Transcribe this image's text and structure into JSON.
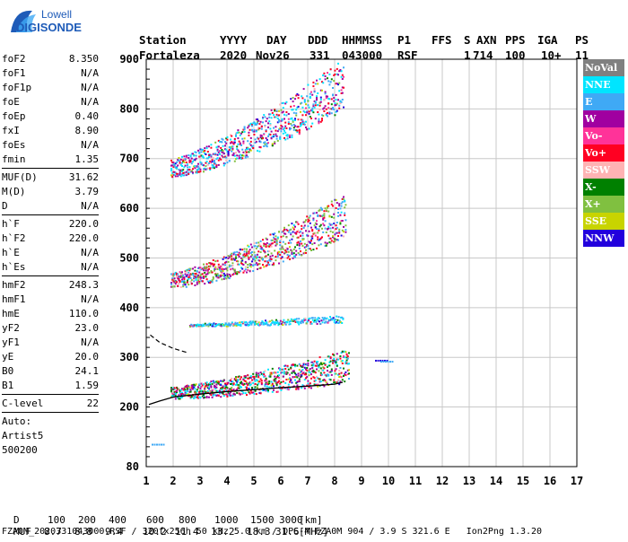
{
  "logo": {
    "line1": "Lowell",
    "line2": "DIGISONDE"
  },
  "header": {
    "labels": [
      "Station",
      "YYYY",
      "DAY",
      "DDD",
      "HHMMSS",
      "P1",
      "FFS",
      "S",
      "AXN",
      "PPS",
      "IGA",
      "PS"
    ],
    "values": [
      "Fortaleza",
      "2020",
      "Nov26",
      "331",
      "043000",
      "RSF",
      "",
      "1",
      "714",
      "100",
      "10+",
      "11"
    ]
  },
  "params": [
    {
      "group": [
        {
          "name": "foF2",
          "value": "8.350"
        },
        {
          "name": "foF1",
          "value": "N/A"
        },
        {
          "name": "foF1p",
          "value": "N/A"
        },
        {
          "name": "foE",
          "value": "N/A"
        },
        {
          "name": "foEp",
          "value": "0.40"
        },
        {
          "name": "fxI",
          "value": "8.90"
        },
        {
          "name": "foEs",
          "value": "N/A"
        },
        {
          "name": "fmin",
          "value": "1.35"
        }
      ]
    },
    {
      "group": [
        {
          "name": "MUF(D)",
          "value": "31.62"
        },
        {
          "name": "M(D)",
          "value": "3.79"
        },
        {
          "name": "D",
          "value": "N/A"
        }
      ]
    },
    {
      "group": [
        {
          "name": "h`F",
          "value": "220.0"
        },
        {
          "name": "h`F2",
          "value": "220.0"
        },
        {
          "name": "h`E",
          "value": "N/A"
        },
        {
          "name": "h`Es",
          "value": "N/A"
        }
      ]
    },
    {
      "group": [
        {
          "name": "hmF2",
          "value": "248.3"
        },
        {
          "name": "hmF1",
          "value": "N/A"
        },
        {
          "name": "hmE",
          "value": "110.0"
        },
        {
          "name": "yF2",
          "value": "23.0"
        },
        {
          "name": "yF1",
          "value": "N/A"
        },
        {
          "name": "yE",
          "value": "20.0"
        },
        {
          "name": "B0",
          "value": "24.1"
        },
        {
          "name": "B1",
          "value": "1.59"
        }
      ]
    },
    {
      "group": [
        {
          "name": "C-level",
          "value": "22"
        }
      ]
    }
  ],
  "auto": [
    "Auto:",
    "Artist5",
    "500200"
  ],
  "legend": [
    {
      "label": "NoVal",
      "color": "#808080"
    },
    {
      "label": "NNE",
      "color": "#00e5ff"
    },
    {
      "label": "E",
      "color": "#3fa9f5"
    },
    {
      "label": "W",
      "color": "#a000a0"
    },
    {
      "label": "Vo-",
      "color": "#ff3399"
    },
    {
      "label": "Vo+",
      "color": "#ff0022"
    },
    {
      "label": "SSW",
      "color": "#ffb3b3"
    },
    {
      "label": "X-",
      "color": "#008000"
    },
    {
      "label": "X+",
      "color": "#80c040"
    },
    {
      "label": "SSE",
      "color": "#c8d400"
    },
    {
      "label": "NNW",
      "color": "#2200dd"
    }
  ],
  "footer": {
    "d_label": "D",
    "d_values": [
      "100",
      "200",
      "400",
      "600",
      "800",
      "1000",
      "1500",
      "3000",
      "[km]"
    ],
    "muf_label": "MUF",
    "muf_values": [
      "8.7",
      "8.8",
      "9.4",
      "10.2",
      "11.4",
      "13.2",
      "18.3",
      "31.6",
      "[MHz]"
    ],
    "info": "FZA0M_2020331043000.RSF / 320fx256h 50 kHz 5.0 km / DPS-4 FZA0M 904 / 3.9 S 321.6 E   Ion2Png 1.3.20"
  },
  "chart_data": {
    "type": "scatter",
    "xlim": [
      1,
      17
    ],
    "ylim": [
      80,
      900
    ],
    "x_ticks": [
      1,
      2,
      3,
      4,
      5,
      6,
      7,
      8,
      9,
      10,
      11,
      12,
      13,
      14,
      15,
      16,
      17
    ],
    "y_ticks": [
      80,
      200,
      300,
      400,
      500,
      600,
      700,
      800,
      900
    ],
    "grid": true,
    "bands": [
      {
        "x_start": 1.9,
        "x_end": 8.5,
        "h_start": 225,
        "h_end": 270,
        "spread": 45,
        "dominant": [
          "Vo+",
          "W",
          "X-",
          "NNE"
        ]
      },
      {
        "x_start": 1.9,
        "x_end": 8.4,
        "h_start": 450,
        "h_end": 570,
        "spread": 60,
        "dominant": [
          "Vo+",
          "W",
          "E",
          "X+"
        ]
      },
      {
        "x_start": 1.9,
        "x_end": 8.3,
        "h_start": 675,
        "h_end": 830,
        "spread": 70,
        "dominant": [
          "E",
          "NNE",
          "Vo+",
          "W"
        ]
      },
      {
        "x_start": 2.6,
        "x_end": 8.3,
        "h_start": 365,
        "h_end": 375,
        "spread": 10,
        "dominant": [
          "NNE",
          "E"
        ]
      }
    ],
    "profile_curve": [
      [
        1.1,
        205
      ],
      [
        1.5,
        212
      ],
      [
        2,
        220
      ],
      [
        3,
        226
      ],
      [
        4,
        231
      ],
      [
        5,
        235
      ],
      [
        6,
        239
      ],
      [
        7,
        242
      ],
      [
        8,
        246
      ],
      [
        8.3,
        250
      ]
    ],
    "dashed_curve": [
      [
        1.15,
        345
      ],
      [
        1.5,
        330
      ],
      [
        2,
        318
      ],
      [
        2.5,
        310
      ]
    ],
    "dot_clusters": [
      {
        "x": 1.2,
        "y": 126,
        "color": "E"
      },
      {
        "x": 9.5,
        "y": 295,
        "color": "NNW"
      },
      {
        "x": 9.7,
        "y": 293,
        "color": "E"
      }
    ]
  }
}
